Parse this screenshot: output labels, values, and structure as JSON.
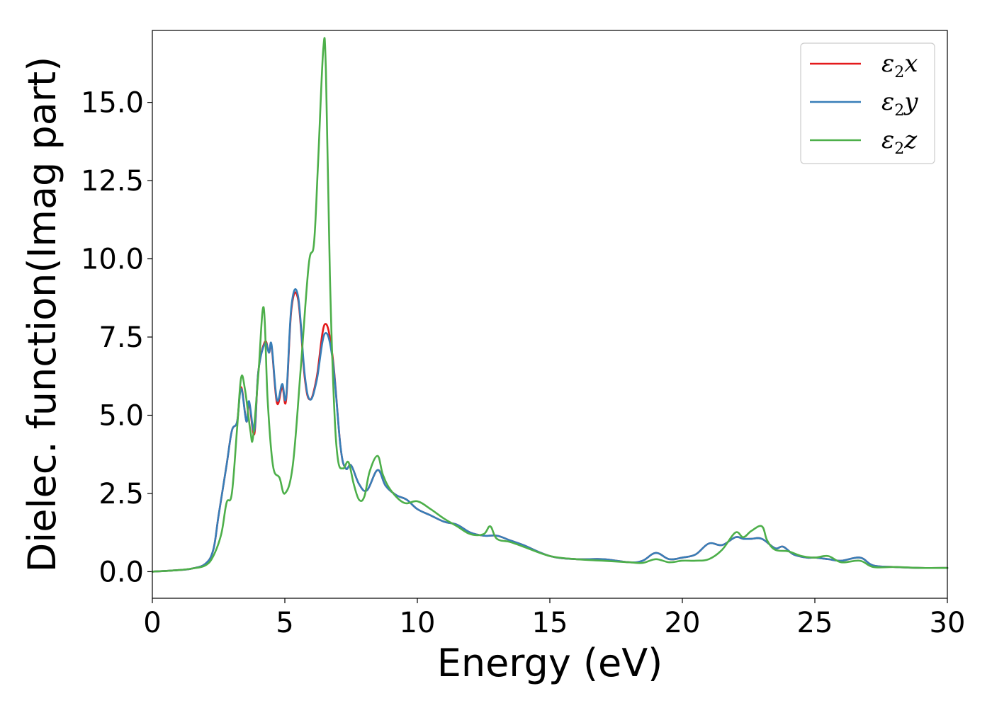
{
  "chart_data": {
    "type": "line",
    "xlabel": "Energy (eV)",
    "ylabel": "Dielec. function(Imag part)",
    "xlim": [
      0,
      30
    ],
    "ylim": [
      -0.85,
      17.3
    ],
    "xticks": [
      0,
      5,
      10,
      15,
      20,
      25,
      30
    ],
    "xtick_labels": [
      "0",
      "5",
      "10",
      "15",
      "20",
      "25",
      "30"
    ],
    "yticks": [
      0.0,
      2.5,
      5.0,
      7.5,
      10.0,
      12.5,
      15.0
    ],
    "ytick_labels": [
      "0.0",
      "2.5",
      "5.0",
      "7.5",
      "10.0",
      "12.5",
      "15.0"
    ],
    "grid": false,
    "legend_position": "top-right",
    "series": [
      {
        "name": "ε2x",
        "legend": {
          "symbol": "ε",
          "sub": "2",
          "axis": "x"
        },
        "color": "#e41a1c",
        "x": [
          0,
          1,
          1.5,
          2,
          2.3,
          2.5,
          2.8,
          3.0,
          3.2,
          3.35,
          3.55,
          3.65,
          3.85,
          4.0,
          4.25,
          4.4,
          4.5,
          4.7,
          4.9,
          5.05,
          5.25,
          5.5,
          5.75,
          5.95,
          6.2,
          6.5,
          6.8,
          7.1,
          7.3,
          7.5,
          7.8,
          8.1,
          8.5,
          8.8,
          9.2,
          9.6,
          10.0,
          10.5,
          11.0,
          11.5,
          12.0,
          12.5,
          13.0,
          13.5,
          14.0,
          15.0,
          16.0,
          17.0,
          18.0,
          18.5,
          19.0,
          19.5,
          20.0,
          20.5,
          21.0,
          21.5,
          22.0,
          22.3,
          22.6,
          23.0,
          23.5,
          23.8,
          24.2,
          24.7,
          25.0,
          25.5,
          26.0,
          26.7,
          27.2,
          28.0,
          29.0,
          30.0
        ],
        "values": [
          0.0,
          0.05,
          0.1,
          0.25,
          0.7,
          1.8,
          3.4,
          4.5,
          4.8,
          5.9,
          4.8,
          5.4,
          4.4,
          6.4,
          7.35,
          7.0,
          7.2,
          5.4,
          5.9,
          5.5,
          8.4,
          8.7,
          6.2,
          5.5,
          6.2,
          7.9,
          6.9,
          4.0,
          3.3,
          3.4,
          2.8,
          2.6,
          3.25,
          2.75,
          2.45,
          2.3,
          2.0,
          1.8,
          1.6,
          1.5,
          1.25,
          1.15,
          1.15,
          1.0,
          0.85,
          0.5,
          0.4,
          0.4,
          0.3,
          0.35,
          0.6,
          0.4,
          0.45,
          0.55,
          0.9,
          0.85,
          1.1,
          1.05,
          1.05,
          1.05,
          0.75,
          0.8,
          0.55,
          0.45,
          0.45,
          0.4,
          0.35,
          0.45,
          0.2,
          0.15,
          0.12,
          0.12
        ]
      },
      {
        "name": "ε2y",
        "legend": {
          "symbol": "ε",
          "sub": "2",
          "axis": "y"
        },
        "color": "#377eb8",
        "x": [
          0,
          1,
          1.5,
          2,
          2.3,
          2.5,
          2.8,
          3.0,
          3.2,
          3.35,
          3.55,
          3.65,
          3.85,
          4.0,
          4.25,
          4.4,
          4.5,
          4.7,
          4.9,
          5.05,
          5.25,
          5.5,
          5.75,
          5.95,
          6.2,
          6.5,
          6.8,
          7.1,
          7.3,
          7.5,
          7.8,
          8.1,
          8.5,
          8.8,
          9.2,
          9.6,
          10.0,
          10.5,
          11.0,
          11.5,
          12.0,
          12.5,
          13.0,
          13.5,
          14.0,
          15.0,
          16.0,
          17.0,
          18.0,
          18.5,
          19.0,
          19.5,
          20.0,
          20.5,
          21.0,
          21.5,
          22.0,
          22.3,
          22.6,
          23.0,
          23.5,
          23.8,
          24.2,
          24.7,
          25.0,
          25.5,
          26.0,
          26.7,
          27.2,
          28.0,
          29.0,
          30.0
        ],
        "values": [
          0.0,
          0.05,
          0.1,
          0.25,
          0.7,
          1.8,
          3.4,
          4.5,
          4.8,
          5.85,
          4.8,
          5.45,
          4.5,
          6.4,
          7.3,
          7.0,
          7.25,
          5.5,
          6.0,
          5.6,
          8.5,
          8.8,
          6.3,
          5.5,
          6.1,
          7.6,
          6.8,
          4.0,
          3.3,
          3.4,
          2.8,
          2.6,
          3.25,
          2.75,
          2.45,
          2.3,
          2.0,
          1.8,
          1.6,
          1.5,
          1.25,
          1.15,
          1.15,
          1.0,
          0.85,
          0.5,
          0.4,
          0.4,
          0.3,
          0.35,
          0.6,
          0.4,
          0.45,
          0.55,
          0.9,
          0.85,
          1.1,
          1.05,
          1.05,
          1.05,
          0.75,
          0.8,
          0.55,
          0.45,
          0.45,
          0.4,
          0.35,
          0.45,
          0.2,
          0.15,
          0.12,
          0.12
        ]
      },
      {
        "name": "ε2z",
        "legend": {
          "symbol": "ε",
          "sub": "2",
          "axis": "z"
        },
        "color": "#4daf4a",
        "x": [
          0,
          1,
          1.5,
          2,
          2.3,
          2.6,
          2.8,
          3.0,
          3.2,
          3.35,
          3.5,
          3.7,
          3.8,
          4.0,
          4.2,
          4.35,
          4.55,
          4.8,
          5.0,
          5.3,
          5.6,
          5.9,
          6.1,
          6.25,
          6.45,
          6.55,
          6.7,
          6.85,
          7.0,
          7.2,
          7.4,
          7.6,
          7.8,
          8.0,
          8.2,
          8.5,
          8.7,
          9.0,
          9.5,
          10.0,
          10.5,
          11.0,
          11.5,
          12.0,
          12.5,
          12.75,
          13.0,
          13.5,
          14.0,
          15.0,
          16.0,
          17.0,
          18.0,
          18.5,
          19.0,
          19.5,
          20.0,
          20.5,
          21.0,
          21.5,
          22.0,
          22.3,
          22.6,
          23.0,
          23.2,
          23.5,
          24.0,
          24.5,
          25.0,
          25.5,
          26.0,
          26.7,
          27.2,
          28.0,
          29.0,
          30.0
        ],
        "values": [
          0.0,
          0.05,
          0.1,
          0.2,
          0.5,
          1.2,
          2.2,
          2.5,
          4.6,
          6.2,
          5.8,
          4.5,
          4.3,
          6.3,
          8.45,
          5.5,
          3.4,
          3.0,
          2.5,
          3.4,
          6.5,
          9.8,
          10.5,
          13.0,
          16.7,
          16.0,
          9.5,
          5.5,
          3.6,
          3.3,
          3.5,
          2.8,
          2.3,
          2.4,
          3.2,
          3.7,
          3.1,
          2.6,
          2.2,
          2.25,
          2.0,
          1.7,
          1.45,
          1.2,
          1.2,
          1.45,
          1.05,
          0.95,
          0.8,
          0.5,
          0.4,
          0.35,
          0.3,
          0.28,
          0.4,
          0.3,
          0.35,
          0.35,
          0.4,
          0.7,
          1.25,
          1.1,
          1.3,
          1.45,
          1.0,
          0.7,
          0.65,
          0.5,
          0.45,
          0.5,
          0.3,
          0.35,
          0.15,
          0.15,
          0.12,
          0.12
        ]
      }
    ]
  }
}
